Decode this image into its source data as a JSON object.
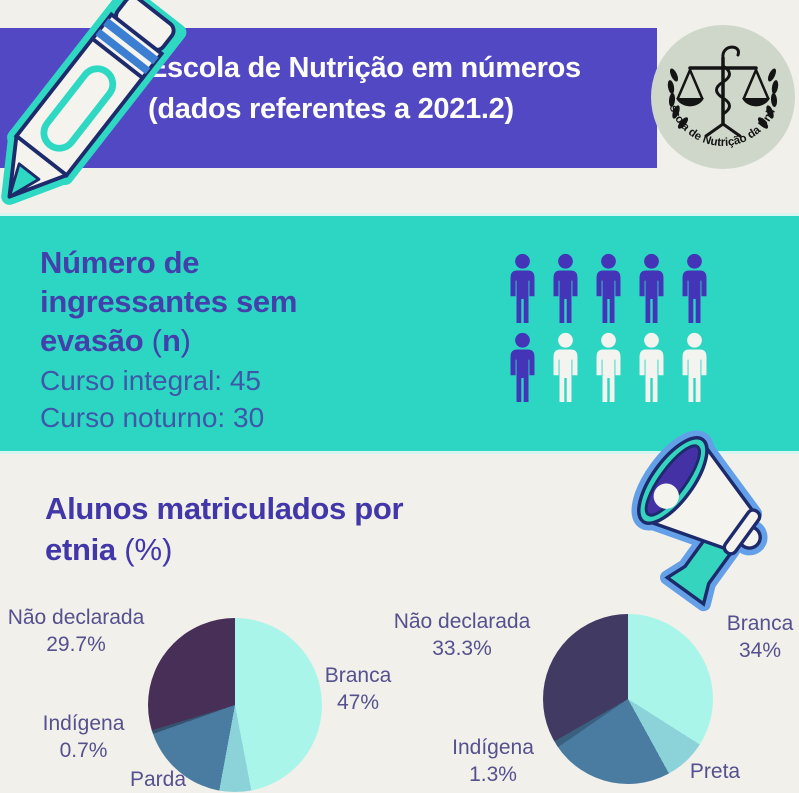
{
  "header": {
    "title_line1": "Escola de Nutrição em números",
    "title_line2": "(dados referentes a 2021.2)",
    "banner_color": "#5348c4",
    "logo_text": "Escola de Nutrição da Unirio"
  },
  "enrollment": {
    "heading_line1": "Número de",
    "heading_line2": "ingressantes sem",
    "heading_line3": "evasão",
    "heading_paren_open": "(",
    "heading_paren_letter": "n",
    "heading_paren_close": ")",
    "stats": [
      "Curso integral: 45",
      "Curso noturno: 30"
    ],
    "band_color": "#2dd6c2",
    "pictogram": {
      "rows": 2,
      "per_row": 5,
      "total": 10,
      "filled": 6,
      "filled_color": "#4334b8",
      "empty_color": "#f3f4ef"
    }
  },
  "ethnicity": {
    "heading_line1": "Alunos matriculados por",
    "heading_line2": "etnia",
    "heading_suffix": "(%)"
  },
  "chart_data": [
    {
      "type": "pie",
      "title": "Alunos matriculados por etnia (%)",
      "labels": [
        "Branca",
        "Preta",
        "Parda",
        "Indígena",
        "Não declarada"
      ],
      "values": [
        47,
        5.9,
        16.7,
        0.7,
        29.7
      ],
      "colors": [
        "#a9f5ea",
        "#8cd3d9",
        "#4a7ba1",
        "#35536e",
        "#472f58"
      ],
      "start_angle_deg": 0,
      "direction": "clockwise",
      "legend": false,
      "callouts": {
        "nao_declarada": {
          "label": "Não declarada",
          "value": "29.7%"
        },
        "branca": {
          "label": "Branca",
          "value": "47%"
        },
        "indigena": {
          "label": "Indígena",
          "value": "0.7%"
        },
        "parda": {
          "label": "Parda",
          "value": ""
        }
      }
    },
    {
      "type": "pie",
      "title": "Alunos matriculados por etnia (%)",
      "labels": [
        "Branca",
        "Preta",
        "Parda",
        "Indígena",
        "Não declarada"
      ],
      "values": [
        34,
        8,
        23.4,
        1.3,
        33.3
      ],
      "colors": [
        "#a9f5ea",
        "#8cd3d9",
        "#4a7ba1",
        "#3a607f",
        "#413a63"
      ],
      "start_angle_deg": 0,
      "direction": "clockwise",
      "legend": false,
      "callouts": {
        "nao_declarada": {
          "label": "Não declarada",
          "value": "33.3%"
        },
        "branca": {
          "label": "Branca",
          "value": "34%"
        },
        "indigena": {
          "label": "Indígena",
          "value": "1.3%"
        },
        "preta": {
          "label": "Preta",
          "value": ""
        }
      }
    }
  ]
}
